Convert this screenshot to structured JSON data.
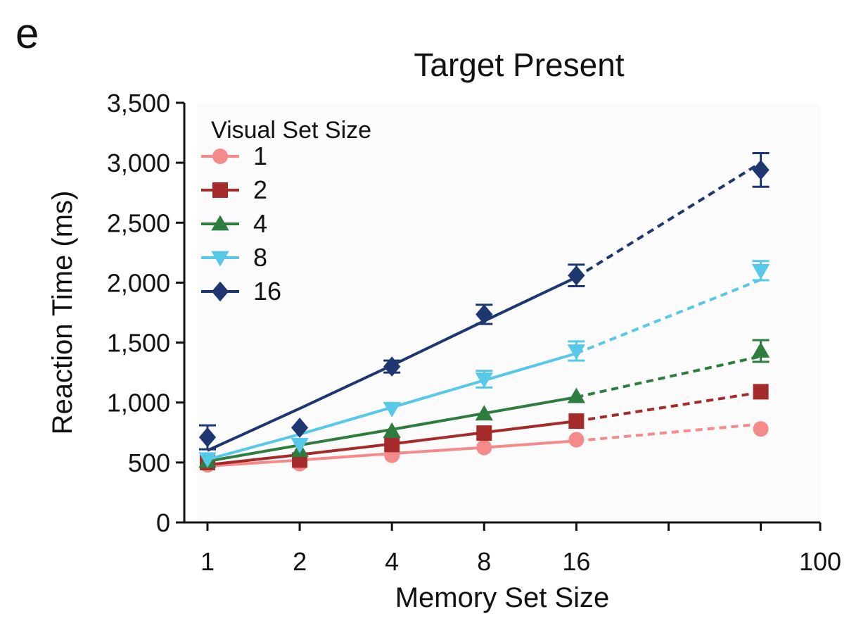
{
  "panel_label": "e",
  "chart_data": {
    "type": "line",
    "title": "Target Present",
    "xlabel": "Memory Set Size",
    "ylabel": "Reaction Time (ms)",
    "x_scale": "log2",
    "xlim": [
      0.84,
      100
    ],
    "ylim": [
      0,
      3500
    ],
    "x_ticks": [
      1,
      2,
      4,
      8,
      16,
      100
    ],
    "x_tick_labels": [
      "1",
      "2",
      "4",
      "8",
      "16",
      "100"
    ],
    "y_ticks": [
      0,
      500,
      1000,
      1500,
      2000,
      2500,
      3000,
      3500
    ],
    "y_tick_labels": [
      "0",
      "500",
      "1,000",
      "1,500",
      "2,000",
      "2,500",
      "3,000",
      "3,500"
    ],
    "legend_title": "Visual Set Size",
    "legend_position": "top-left",
    "grid": false,
    "series": [
      {
        "name": "1",
        "color": "#f58a8a",
        "marker": "circle",
        "x": [
          1,
          2,
          4,
          8,
          16,
          64
        ],
        "y": [
          480,
          490,
          560,
          625,
          690,
          780
        ],
        "err": [
          0,
          0,
          0,
          0,
          0,
          0
        ],
        "fit": [
          470,
          520,
          575,
          625,
          680,
          820
        ]
      },
      {
        "name": "2",
        "color": "#a52a2a",
        "marker": "square",
        "x": [
          1,
          2,
          4,
          8,
          16,
          64
        ],
        "y": [
          500,
          520,
          650,
          745,
          845,
          1090
        ],
        "err": [
          0,
          0,
          0,
          0,
          0,
          0
        ],
        "fit": [
          480,
          565,
          655,
          750,
          845,
          1085
        ]
      },
      {
        "name": "4",
        "color": "#2e7d3e",
        "marker": "triangle-up",
        "x": [
          1,
          2,
          4,
          8,
          16,
          64
        ],
        "y": [
          510,
          600,
          760,
          905,
          1050,
          1430
        ],
        "err": [
          0,
          0,
          0,
          0,
          0,
          90
        ],
        "fit": [
          510,
          645,
          775,
          910,
          1045,
          1385
        ]
      },
      {
        "name": "8",
        "color": "#57c8e8",
        "marker": "triangle-down",
        "x": [
          1,
          2,
          4,
          8,
          16,
          64
        ],
        "y": [
          530,
          650,
          950,
          1195,
          1430,
          2100
        ],
        "err": [
          0,
          0,
          0,
          70,
          80,
          80
        ],
        "fit": [
          525,
          735,
          960,
          1185,
          1410,
          2025
        ]
      },
      {
        "name": "16",
        "color": "#1e3770",
        "marker": "diamond",
        "x": [
          1,
          2,
          4,
          8,
          16,
          64
        ],
        "y": [
          710,
          790,
          1300,
          1735,
          2060,
          2940
        ],
        "err": [
          100,
          0,
          50,
          80,
          90,
          140
        ],
        "fit": [
          600,
          950,
          1310,
          1680,
          2045,
          3000
        ]
      }
    ]
  }
}
